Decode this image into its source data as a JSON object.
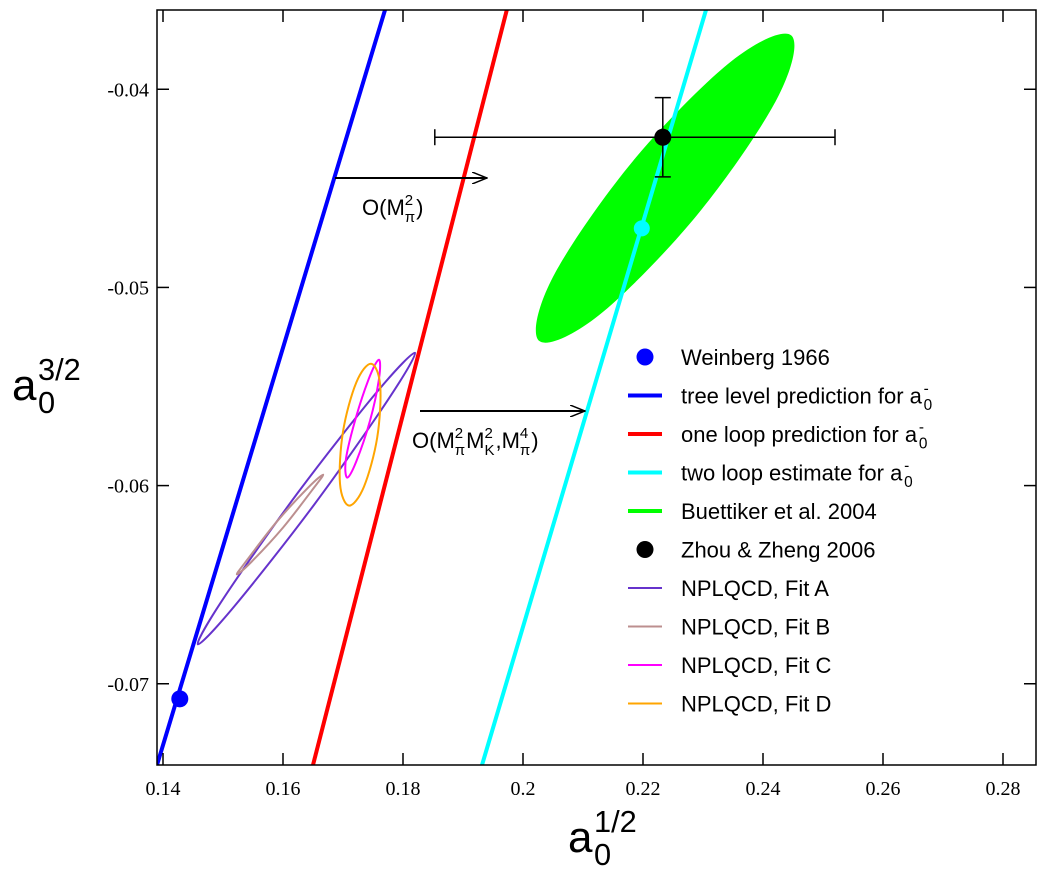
{
  "chart_data": {
    "type": "scatter",
    "x_label": {
      "base": "a",
      "sub": "0",
      "sup": "1/2"
    },
    "y_label": {
      "base": "a",
      "sub": "0",
      "sup": "3/2"
    },
    "xlim": [
      0.139,
      0.2855
    ],
    "ylim": [
      -0.0741,
      -0.036
    ],
    "xticks": [
      0.14,
      0.16,
      0.18,
      0.2,
      0.22,
      0.24,
      0.26,
      0.28
    ],
    "yticks": [
      -0.07,
      -0.06,
      -0.05,
      -0.04
    ],
    "legend": "lower-right",
    "series": [
      {
        "name": "Weinberg 1966",
        "kind": "point",
        "color": "#0000ff",
        "x": [
          0.1428
        ],
        "y": [
          -0.07076
        ]
      },
      {
        "name": "tree level prediction for a",
        "name_sub": "0",
        "name_sup": "-",
        "kind": "line",
        "color": "#0000ff",
        "x": [
          0.139,
          0.177
        ],
        "y": [
          -0.0741,
          -0.036
        ]
      },
      {
        "name": "one loop prediction for a",
        "name_sub": "0",
        "name_sup": "-",
        "kind": "line",
        "color": "#ff0000",
        "x": [
          0.165,
          0.1973
        ],
        "y": [
          -0.0741,
          -0.036
        ]
      },
      {
        "name": "two loop estimate for a",
        "name_sub": "0",
        "name_sup": "-",
        "kind": "line",
        "color": "#00ffff",
        "x": [
          0.19317,
          0.2305
        ],
        "y": [
          -0.0741,
          -0.036
        ],
        "point_x": 0.2198,
        "point_y": -0.04702
      },
      {
        "name": "Buettiker et al. 2004",
        "kind": "filled-ellipse",
        "color": "#00ff00",
        "x": [
          0.2447,
          0.2423,
          0.229,
          0.2127,
          0.2027,
          0.205,
          0.2183,
          0.2347
        ],
        "y": [
          -0.03728,
          -0.0405,
          -0.04635,
          -0.05139,
          -0.0527,
          -0.04947,
          -0.04363,
          -0.03859
        ]
      },
      {
        "name": "Zhou & Zheng 2006",
        "kind": "point",
        "color": "#000000",
        "x": [
          0.2233
        ],
        "y": [
          -0.04242
        ],
        "xerr": [
          [
            0.038,
            0.0287
          ]
        ],
        "yerr": [
          [
            0.002,
            0.002
          ]
        ]
      },
      {
        "name": "NPLQCD, Fit A",
        "kind": "ellipse",
        "color": "#6633cc",
        "x": [
          0.182,
          0.1775,
          0.1652,
          0.152,
          0.1458,
          0.1502,
          0.1625,
          0.1757
        ],
        "y": [
          -0.0533,
          -0.05567,
          -0.06096,
          -0.06605,
          -0.06801,
          -0.06564,
          -0.06035,
          -0.05526
        ]
      },
      {
        "name": "NPLQCD, Fit B",
        "kind": "ellipse",
        "color": "#bc8f8f",
        "x": [
          0.1667,
          0.1648,
          0.16,
          0.1548,
          0.1523,
          0.1542,
          0.159,
          0.1642
        ],
        "y": [
          -0.05945,
          -0.06025,
          -0.06212,
          -0.06383,
          -0.06448,
          -0.06368,
          -0.06181,
          -0.0601
        ]
      },
      {
        "name": "NPLQCD, Fit C",
        "kind": "ellipse",
        "color": "#ff00ff",
        "x": [
          0.176,
          0.176,
          0.1745,
          0.1722,
          0.1707,
          0.1705,
          0.1722,
          0.1745
        ],
        "y": [
          -0.05365,
          -0.05461,
          -0.05673,
          -0.05879,
          -0.0596,
          -0.05864,
          -0.05652,
          -0.05446
        ]
      },
      {
        "name": "NPLQCD, Fit D",
        "kind": "ellipse",
        "color": "#ffa500",
        "x": [
          0.1747,
          0.1762,
          0.1757,
          0.1735,
          0.171,
          0.1695,
          0.17,
          0.1722
        ],
        "y": [
          -0.05385,
          -0.05496,
          -0.05758,
          -0.06005,
          -0.06101,
          -0.0599,
          -0.05728,
          -0.05481
        ]
      }
    ],
    "annotations": [
      {
        "parts": [
          "O(M",
          "π",
          "2",
          ")"
        ]
      },
      {
        "parts": [
          "O(M",
          "π",
          "2",
          "M",
          "K",
          "2",
          ",M",
          "π",
          "4",
          ")"
        ]
      }
    ]
  }
}
